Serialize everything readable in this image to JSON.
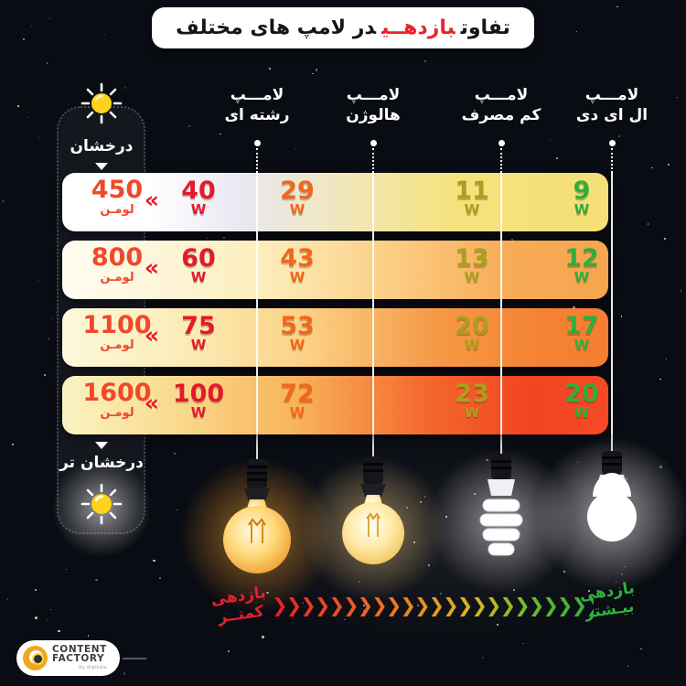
{
  "title": {
    "pre": "تفاوت",
    "highlight": "بازدهــی",
    "post": "در لامپ های مختلف"
  },
  "sidebar": {
    "top_label": "درخشان",
    "bottom_label": "درخشان تر",
    "sun_color": "#ffd21c"
  },
  "columns": [
    {
      "label_line1": "لامـــپ",
      "label_line2": "رشته ای",
      "value_color": "#e21b2c"
    },
    {
      "label_line1": "لامـــپ",
      "label_line2": "هالوژن",
      "value_color": "#f2671c"
    },
    {
      "label_line1": "لامـــپ",
      "label_line2": "کم مصرف",
      "value_color": "#a9a01f"
    },
    {
      "label_line1": "لامـــپ",
      "label_line2": "ال ای دی",
      "value_color": "#2fae3d"
    }
  ],
  "watt_unit": "W",
  "lumen_unit": "لومـن",
  "row_chevron": "«",
  "rows": [
    {
      "lumens": "450",
      "watts": [
        "40",
        "29",
        "11",
        "9"
      ]
    },
    {
      "lumens": "800",
      "watts": [
        "60",
        "43",
        "13",
        "12"
      ]
    },
    {
      "lumens": "1100",
      "watts": [
        "75",
        "53",
        "20",
        "17"
      ]
    },
    {
      "lumens": "1600",
      "watts": [
        "100",
        "72",
        "23",
        "20"
      ]
    }
  ],
  "efficiency": {
    "less_line1": "بازدهی",
    "less_line2": "کمتــر",
    "less_color": "#e8202a",
    "more_line1": "بازدهی",
    "more_line2": "بیـشتر",
    "more_color": "#2fb13d"
  },
  "logo": {
    "line1": "CONTENT",
    "line2": "FACTORY",
    "sub": "by digikala"
  },
  "chart_data": {
    "type": "table",
    "title": "تفاوت بازدهی در لامپ های مختلف",
    "columns": [
      "لامپ رشته ای",
      "لامپ هالوژن",
      "لامپ کم مصرف",
      "لامپ ال ای دی"
    ],
    "row_labels_lumens": [
      450,
      800,
      1100,
      1600
    ],
    "watts": [
      [
        40,
        29,
        11,
        9
      ],
      [
        60,
        43,
        13,
        12
      ],
      [
        75,
        53,
        20,
        17
      ],
      [
        100,
        72,
        23,
        20
      ]
    ],
    "unit": "W",
    "legend": {
      "left": "بازدهی کمتر",
      "right": "بازدهی بیشتر"
    },
    "brightness_axis": {
      "top": "درخشان",
      "bottom": "درخشان تر"
    }
  }
}
